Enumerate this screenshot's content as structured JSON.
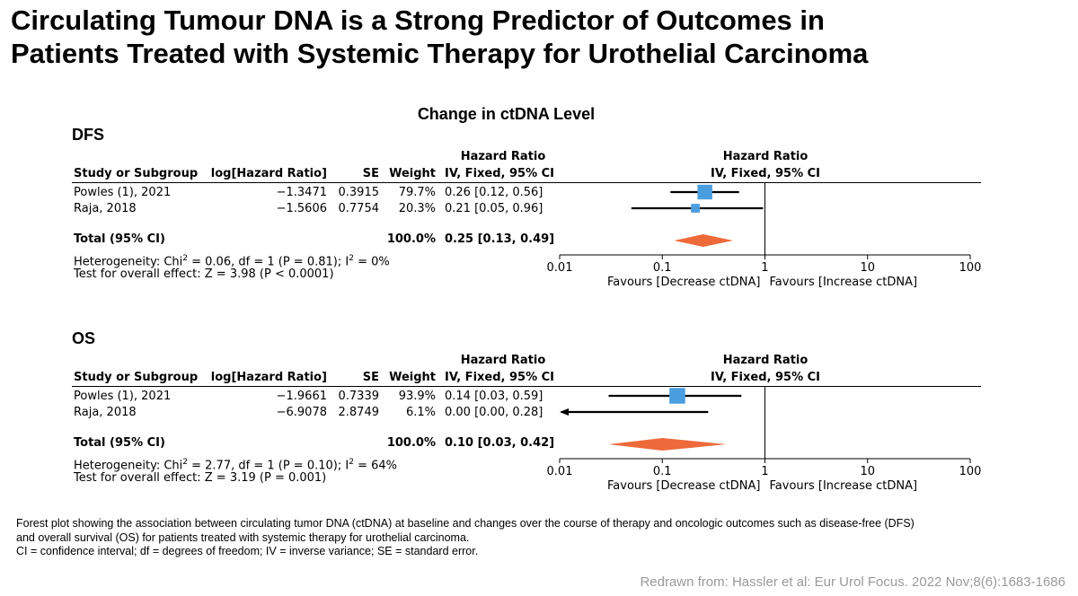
{
  "title": [
    "Circulating Tumour DNA is a Strong Predictor of Outcomes in",
    "Patients Treated with Systemic Therapy for Urothelial Carcinoma"
  ],
  "section_title": "Change in ctDNA Level",
  "headers": {
    "hr_group": "Hazard Ratio",
    "study": "Study or Subgroup",
    "loghr": "log[Hazard Ratio]",
    "se": "SE",
    "weight": "Weight",
    "ci": "IV, Fixed, 95% CI",
    "plot_group": "Hazard Ratio",
    "plot_ci": "IV, Fixed, 95% CI"
  },
  "colors": {
    "study_square": "#4a9ee0",
    "diamond": "#ef6a3a"
  },
  "chart_data": [
    {
      "type": "forest",
      "label": "DFS",
      "x_scale": "log",
      "xlim": [
        0.01,
        100
      ],
      "ticks": [
        "0.01",
        "0.1",
        "1",
        "10",
        "100"
      ],
      "favours_left": "Favours [Decrease ctDNA]",
      "favours_right": "Favours [Increase ctDNA]",
      "studies": [
        {
          "name": "Powles (1), 2021",
          "loghr": "−1.3471",
          "se": "0.3915",
          "weight": "79.7%",
          "ci_text": "0.26 [0.12, 0.56]",
          "hr": 0.26,
          "lo": 0.12,
          "hi": 0.56,
          "w": 79.7
        },
        {
          "name": "Raja, 2018",
          "loghr": "−1.5606",
          "se": "0.7754",
          "weight": "20.3%",
          "ci_text": "0.21 [0.05, 0.96]",
          "hr": 0.21,
          "lo": 0.05,
          "hi": 0.96,
          "w": 20.3
        }
      ],
      "total": {
        "label": "Total (95% CI)",
        "weight": "100.0%",
        "ci_text": "0.25 [0.13, 0.49]",
        "hr": 0.25,
        "lo": 0.13,
        "hi": 0.49
      },
      "heterogeneity_a": "Heterogeneity: Chi",
      "heterogeneity_b": " = 0.06, df = 1 (P = 0.81); I",
      "heterogeneity_c": " = 0%",
      "overall": "Test for overall effect: Z = 3.98 (P < 0.0001)"
    },
    {
      "type": "forest",
      "label": "OS",
      "x_scale": "log",
      "xlim": [
        0.01,
        100
      ],
      "ticks": [
        "0.01",
        "0.1",
        "1",
        "10",
        "100"
      ],
      "favours_left": "Favours [Decrease ctDNA]",
      "favours_right": "Favours [Increase ctDNA]",
      "studies": [
        {
          "name": "Powles (1), 2021",
          "loghr": "−1.9661",
          "se": "0.7339",
          "weight": "93.9%",
          "ci_text": "0.14 [0.03, 0.59]",
          "hr": 0.14,
          "lo": 0.03,
          "hi": 0.59,
          "w": 93.9
        },
        {
          "name": "Raja, 2018",
          "loghr": "−6.9078",
          "se": "2.8749",
          "weight": "6.1%",
          "ci_text": "0.00 [0.00, 0.28]",
          "hr": 0.001,
          "lo": 3.5e-07,
          "hi": 0.28,
          "w": 6.1
        }
      ],
      "total": {
        "label": "Total (95% CI)",
        "weight": "100.0%",
        "ci_text": "0.10 [0.03, 0.42]",
        "hr": 0.1,
        "lo": 0.03,
        "hi": 0.42
      },
      "heterogeneity_a": "Heterogeneity: Chi",
      "heterogeneity_b": " = 2.77, df = 1 (P = 0.10); I",
      "heterogeneity_c": " = 64%",
      "overall": "Test for overall effect: Z = 3.19 (P = 0.001)"
    }
  ],
  "caption": [
    "Forest plot showing the association between circulating tumor DNA (ctDNA) at baseline and changes over the course of therapy and oncologic outcomes such as disease-free (DFS)",
    "and overall survival (OS) for patients treated with systemic therapy for urothelial carcinoma.",
    "CI = confidence interval; df = degrees of freedom; IV = inverse variance; SE = standard error."
  ],
  "source": "Redrawn from: Hassler et al: Eur Urol Focus. 2022 Nov;8(6):1683-1686"
}
